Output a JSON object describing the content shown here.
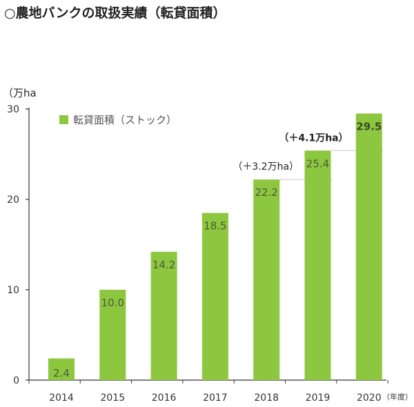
{
  "title": "○農地バンクの取扱実績（転貸面積）",
  "chart_data": {
    "type": "bar",
    "categories": [
      "2014",
      "2015",
      "2016",
      "2017",
      "2018",
      "2019",
      "2020"
    ],
    "series": [
      {
        "name": "転貸面積（ストック）",
        "values": [
          2.4,
          10.0,
          14.2,
          18.5,
          22.2,
          25.4,
          29.5
        ]
      }
    ],
    "value_labels": [
      "2.4",
      "10.0",
      "14.2",
      "18.5",
      "22.2",
      "25.4",
      "29.5"
    ],
    "yunit": "（万ha",
    "xunit": "（年度）",
    "ylim": [
      0,
      30
    ],
    "yticks": [
      0,
      10,
      20,
      30
    ],
    "grid": false,
    "legend_position": "top-left",
    "annotations": [
      {
        "text": "（＋3.2万ha）",
        "from_category": "2018",
        "to_category": "2019"
      },
      {
        "text": "（＋4.1万ha）",
        "from_category": "2019",
        "to_category": "2020"
      }
    ],
    "colors": {
      "bar": "#8dc63f",
      "label": "#4d5a3a",
      "label_top": "#3d4a2a",
      "axis": "#333333"
    }
  }
}
